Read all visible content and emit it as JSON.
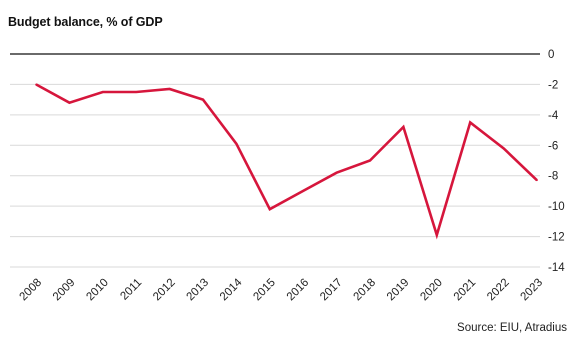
{
  "chart_data": {
    "type": "line",
    "title": "Budget balance, % of GDP",
    "xlabel": "",
    "ylabel": "",
    "categories": [
      "2008",
      "2009",
      "2010",
      "2011",
      "2012",
      "2013",
      "2014",
      "2015",
      "2016",
      "2017",
      "2018",
      "2019",
      "2020",
      "2021",
      "2022",
      "2023"
    ],
    "series": [
      {
        "name": "",
        "values": [
          -2.0,
          -3.2,
          -2.5,
          -2.5,
          -2.3,
          -3.0,
          -5.9,
          -10.2,
          -9.0,
          -7.8,
          -7.0,
          -4.8,
          -11.9,
          -4.5,
          -6.2,
          -8.3
        ],
        "color": "#d6163c"
      }
    ],
    "ylim": [
      -14,
      0
    ],
    "yticks": [
      "0",
      "-2",
      "-4",
      "-6",
      "-8",
      "-10",
      "-12",
      "-14"
    ],
    "ytick_values": [
      0,
      -2,
      -4,
      -6,
      -8,
      -10,
      -12,
      -14
    ],
    "grid": true,
    "y_axis_side": "right",
    "zero_line_color": "#111111",
    "grid_color": "#d9d9d9",
    "source": "Source: EIU, Atradius"
  }
}
